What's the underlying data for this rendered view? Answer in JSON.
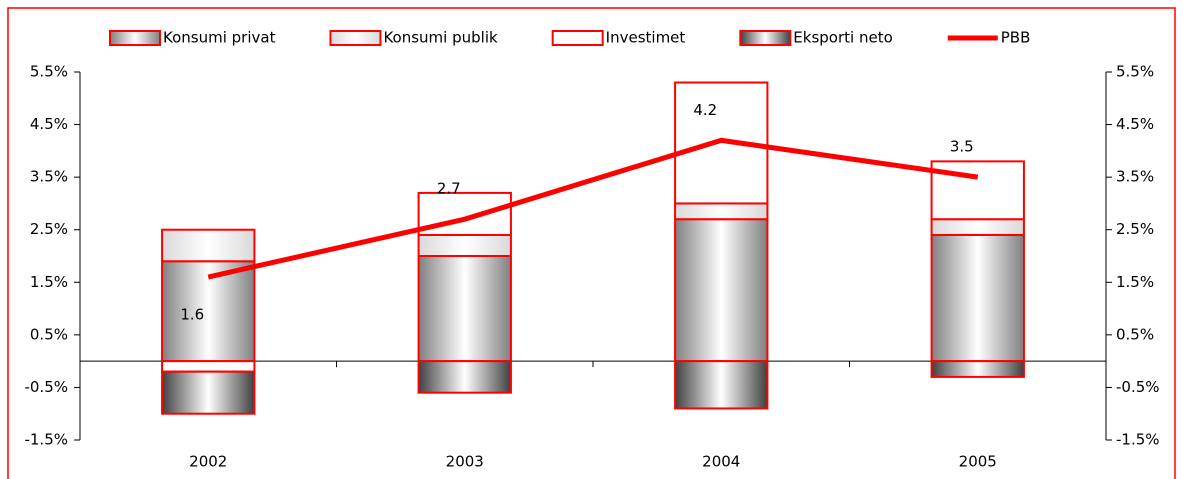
{
  "chart_data": {
    "type": "bar",
    "categories": [
      "2002",
      "2003",
      "2004",
      "2005"
    ],
    "series": [
      {
        "name": "Konsumi privat",
        "color": "#808080",
        "values": [
          1.9,
          2.0,
          2.7,
          2.4
        ]
      },
      {
        "name": "Konsumi publik",
        "color": "#d9d9d9",
        "values": [
          0.6,
          0.4,
          0.3,
          0.3
        ]
      },
      {
        "name": "Investimet",
        "color": "#ffffff",
        "values": [
          -0.2,
          0.8,
          2.3,
          1.1
        ]
      },
      {
        "name": "Eksporti neto",
        "color": "#404040",
        "values": [
          -0.8,
          -0.6,
          -0.9,
          -0.3
        ]
      },
      {
        "name": "PBB",
        "type": "line",
        "axis": "y2",
        "color": "#ff0000",
        "values": [
          1.6,
          2.7,
          4.2,
          3.5
        ]
      }
    ],
    "stacked": true,
    "bar_edge_color": "#ff0000",
    "ylim": [
      -1.5,
      5.5
    ],
    "yticks": [
      {
        "value": -1.5,
        "label": "-1.5%"
      },
      {
        "value": -0.5,
        "label": "-0.5%"
      },
      {
        "value": 0.5,
        "label": "0.5%"
      },
      {
        "value": 1.5,
        "label": "1.5%"
      },
      {
        "value": 2.5,
        "label": "2.5%"
      },
      {
        "value": 3.5,
        "label": "3.5%"
      },
      {
        "value": 4.5,
        "label": "4.5%"
      },
      {
        "value": 5.5,
        "label": "5.5%"
      }
    ],
    "y2lim": [
      -1.5,
      5.5
    ],
    "y2ticks": [
      {
        "value": -1.5,
        "label": "-1.5%"
      },
      {
        "value": -0.5,
        "label": "-0.5%"
      },
      {
        "value": 0.5,
        "label": "0.5%"
      },
      {
        "value": 1.5,
        "label": "1.5%"
      },
      {
        "value": 2.5,
        "label": "2.5%"
      },
      {
        "value": 3.5,
        "label": "3.5%"
      },
      {
        "value": 4.5,
        "label": "4.5%"
      },
      {
        "value": 5.5,
        "label": "5.5%"
      }
    ],
    "legend": "top"
  }
}
